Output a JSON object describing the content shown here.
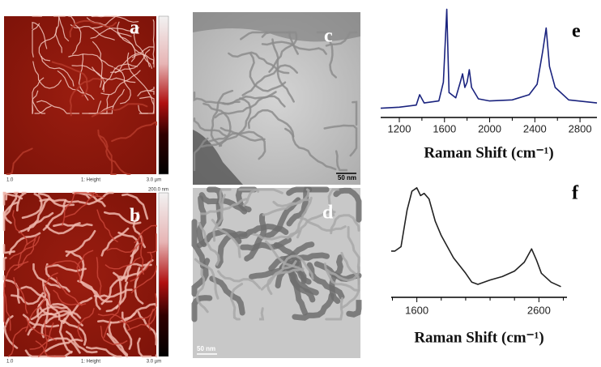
{
  "panels": [
    {
      "label": "a",
      "footer": [
        "1.0",
        "1: Height",
        "3.0 µm"
      ]
    },
    {
      "label": "b",
      "footer": [
        "1.0",
        "1: Height",
        "3.0 µm"
      ],
      "scale": "200.0 nm"
    },
    {
      "label": "c",
      "scale": "50 nm"
    },
    {
      "label": "d",
      "scale": "50 nm"
    }
  ],
  "chart_data": [
    {
      "type": "line",
      "label": "e",
      "x_label": "Raman Shift (cm⁻¹)",
      "color": "#1a237e",
      "xlim": [
        1035,
        2950
      ],
      "xticks": [
        1200,
        1600,
        2000,
        2400,
        2800
      ],
      "xminor": [
        1400,
        1800,
        2200,
        2600
      ],
      "ylim": [
        0,
        105
      ],
      "x": [
        1035,
        1200,
        1350,
        1380,
        1420,
        1550,
        1590,
        1620,
        1640,
        1700,
        1740,
        1760,
        1780,
        1800,
        1820,
        1840,
        1900,
        2000,
        2200,
        2350,
        2420,
        2470,
        2500,
        2530,
        2580,
        2700,
        2950
      ],
      "values": [
        5,
        6,
        8,
        18,
        10,
        12,
        30,
        100,
        20,
        15,
        30,
        38,
        25,
        30,
        42,
        25,
        14,
        12,
        13,
        18,
        28,
        60,
        82,
        45,
        25,
        13,
        10
      ]
    },
    {
      "type": "line",
      "label": "f",
      "x_label": "Raman Shift (cm⁻¹)",
      "color": "#222222",
      "xlim": [
        1390,
        2830
      ],
      "xticks": [
        1600,
        2600
      ],
      "xminor": [
        1400,
        1800,
        2000,
        2200,
        2400,
        2800
      ],
      "ylim": [
        0,
        100
      ],
      "x": [
        1390,
        1420,
        1470,
        1520,
        1560,
        1600,
        1630,
        1660,
        1700,
        1750,
        1800,
        1900,
        2000,
        2050,
        2100,
        2200,
        2300,
        2400,
        2480,
        2540,
        2580,
        2620,
        2700,
        2780
      ],
      "values": [
        38,
        38,
        42,
        75,
        92,
        95,
        88,
        90,
        85,
        65,
        52,
        32,
        18,
        10,
        8,
        12,
        15,
        20,
        28,
        40,
        30,
        18,
        10,
        6
      ]
    }
  ]
}
